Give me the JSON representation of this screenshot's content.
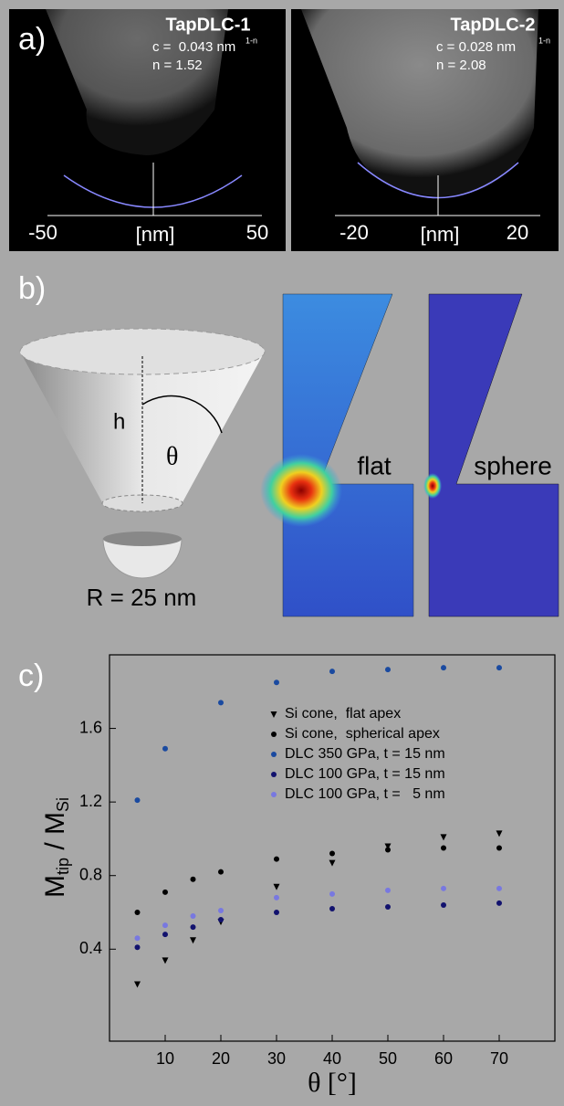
{
  "panel_a": {
    "label": "a)",
    "images": [
      {
        "title": "TapDLC-1",
        "c_text": "c =  0.043 nm",
        "c_exp": "1-n",
        "n_text": "n = 1.52",
        "x_left": "-50",
        "x_unit": "[nm]",
        "x_right": "50"
      },
      {
        "title": "TapDLC-2",
        "c_text": "c = 0.028 nm",
        "c_exp": "1-n",
        "n_text": "n = 2.08",
        "x_left": "-20",
        "x_unit": "[nm]",
        "x_right": "20"
      }
    ]
  },
  "panel_b": {
    "label": "b)",
    "h": "h",
    "theta": "θ",
    "radius": "R = 25 nm",
    "flat": "flat",
    "sphere": "sphere"
  },
  "panel_c": {
    "label": "c)"
  },
  "chart_data": {
    "type": "scatter",
    "xlabel": "θ [°]",
    "ylabel": {
      "m1": "M",
      "sub1": "tip",
      "m2": " / M",
      "sub2": "Si"
    },
    "xlim": [
      0,
      80
    ],
    "ylim": [
      -0.1,
      2.0
    ],
    "xticks": [
      10,
      20,
      30,
      40,
      50,
      60,
      70
    ],
    "yticks": [
      0.4,
      0.8,
      1.2,
      1.6
    ],
    "legend": "upper right",
    "series": [
      {
        "name": "Si cone,  flat apex",
        "color": "#000000",
        "marker": "triangle",
        "x": [
          5,
          10,
          15,
          20,
          30,
          40,
          50,
          60,
          70
        ],
        "values": [
          0.21,
          0.34,
          0.45,
          0.55,
          0.74,
          0.87,
          0.96,
          1.01,
          1.03
        ]
      },
      {
        "name": "Si cone,  spherical apex",
        "color": "#000000",
        "marker": "circle",
        "x": [
          5,
          10,
          15,
          20,
          30,
          40,
          50,
          60,
          70
        ],
        "values": [
          0.6,
          0.71,
          0.78,
          0.82,
          0.89,
          0.92,
          0.94,
          0.95,
          0.95
        ]
      },
      {
        "name": "DLC 350 GPa, t = 15 nm",
        "color": "#1a4aa0",
        "marker": "circle",
        "x": [
          5,
          10,
          20,
          30,
          40,
          50,
          60,
          70
        ],
        "values": [
          1.21,
          1.49,
          1.74,
          1.85,
          1.91,
          1.92,
          1.93,
          1.93
        ]
      },
      {
        "name": "DLC 100 GPa, t = 15 nm",
        "color": "#12126e",
        "marker": "circle",
        "x": [
          5,
          10,
          15,
          20,
          30,
          40,
          50,
          60,
          70
        ],
        "values": [
          0.41,
          0.48,
          0.52,
          0.56,
          0.6,
          0.62,
          0.63,
          0.64,
          0.65
        ]
      },
      {
        "name": "DLC 100 GPa, t =   5 nm",
        "color": "#7878e0",
        "marker": "circle",
        "x": [
          5,
          10,
          15,
          20,
          30,
          40,
          50,
          60,
          70
        ],
        "values": [
          0.46,
          0.53,
          0.58,
          0.61,
          0.68,
          0.7,
          0.72,
          0.73,
          0.73
        ]
      }
    ]
  }
}
